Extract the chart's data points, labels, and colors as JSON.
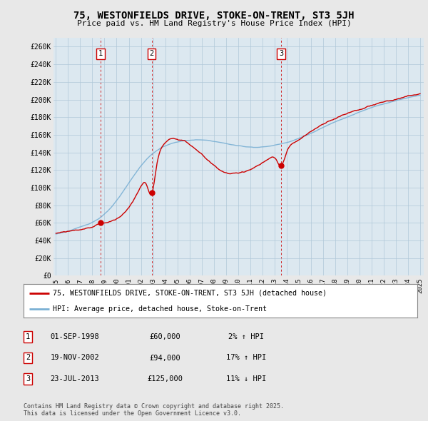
{
  "title": "75, WESTONFIELDS DRIVE, STOKE-ON-TRENT, ST3 5JH",
  "subtitle": "Price paid vs. HM Land Registry's House Price Index (HPI)",
  "ylabel_ticks": [
    "£0",
    "£20K",
    "£40K",
    "£60K",
    "£80K",
    "£100K",
    "£120K",
    "£140K",
    "£160K",
    "£180K",
    "£200K",
    "£220K",
    "£240K",
    "£260K"
  ],
  "ytick_values": [
    0,
    20000,
    40000,
    60000,
    80000,
    100000,
    120000,
    140000,
    160000,
    180000,
    200000,
    220000,
    240000,
    260000
  ],
  "ylim": [
    0,
    270000
  ],
  "sale_dates_num": [
    1998.67,
    2002.89,
    2013.55
  ],
  "sale_prices": [
    60000,
    94000,
    125000
  ],
  "sale_labels": [
    "1",
    "2",
    "3"
  ],
  "hpi_line_color": "#7ab0d4",
  "price_line_color": "#cc0000",
  "sale_vline_color": "#cc0000",
  "background_color": "#e8e8e8",
  "plot_bg_color": "#dce8f0",
  "grid_color": "#b0c8d8",
  "legend_entries": [
    "75, WESTONFIELDS DRIVE, STOKE-ON-TRENT, ST3 5JH (detached house)",
    "HPI: Average price, detached house, Stoke-on-Trent"
  ],
  "table_rows": [
    [
      "1",
      "01-SEP-1998",
      "£60,000",
      "2% ↑ HPI"
    ],
    [
      "2",
      "19-NOV-2002",
      "£94,000",
      "17% ↑ HPI"
    ],
    [
      "3",
      "23-JUL-2013",
      "£125,000",
      "11% ↓ HPI"
    ]
  ],
  "footnote": "Contains HM Land Registry data © Crown copyright and database right 2025.\nThis data is licensed under the Open Government Licence v3.0.",
  "x_start_year": 1995,
  "x_end_year": 2025
}
